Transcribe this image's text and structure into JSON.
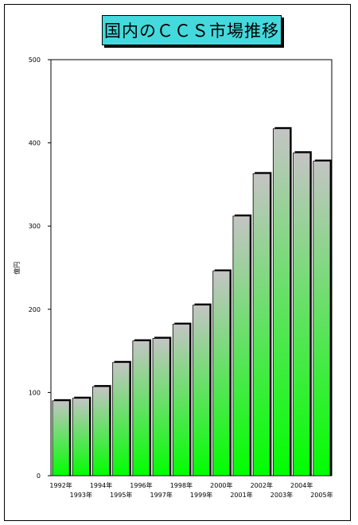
{
  "chart_data": {
    "type": "bar",
    "title": "国内のＣＣＳ市場推移",
    "ylabel": "億円",
    "xlabel": "",
    "categories": [
      "1992年",
      "1993年",
      "1994年",
      "1995年",
      "1996年",
      "1997年",
      "1998年",
      "1999年",
      "2000年",
      "2001年",
      "2002年",
      "2003年",
      "2004年",
      "2005年"
    ],
    "values": [
      90,
      93,
      107,
      136,
      162,
      165,
      182,
      205,
      246,
      312,
      363,
      417,
      388,
      378
    ],
    "ylim": [
      0,
      500
    ],
    "yticks": [
      "0",
      "100",
      "200",
      "300",
      "400",
      "500"
    ],
    "grid": false,
    "colors": {
      "bar_top": "#c4c4c4",
      "bar_bottom": "#00ff00",
      "title_bg": "#44d9dd"
    }
  }
}
